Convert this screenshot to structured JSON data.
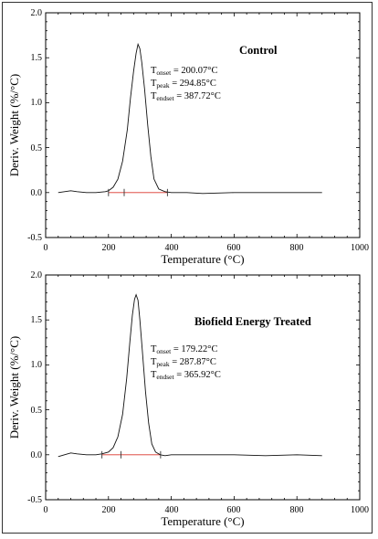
{
  "chart_data": [
    {
      "type": "line",
      "title": "Control",
      "xlabel": "Temperature (°C)",
      "ylabel": "Deriv. Weight (%/°C)",
      "xlim": [
        0,
        1000
      ],
      "ylim": [
        -0.5,
        2.0
      ],
      "xticks": [
        "0",
        "200",
        "400",
        "600",
        "800",
        "1000"
      ],
      "yticks": [
        "-0.5",
        "0.0",
        "0.5",
        "1.0",
        "1.5",
        "2.0"
      ],
      "annotations": {
        "onset_label": "T",
        "onset_sub": "onset",
        "onset_value": " = 200.07°C",
        "peak_label": "T",
        "peak_sub": "peak",
        "peak_value": " = 294.85°C",
        "endset_label": "T",
        "endset_sub": "endset",
        "endset_value": " = 387.72°C"
      },
      "series": [
        {
          "color": "#111111",
          "x": [
            40,
            60,
            80,
            100,
            130,
            160,
            190,
            200,
            215,
            230,
            245,
            260,
            270,
            280,
            288,
            294,
            300,
            306,
            315,
            325,
            335,
            345,
            360,
            380,
            400,
            450,
            500,
            600,
            700,
            800,
            880
          ],
          "y": [
            0.0,
            0.01,
            0.02,
            0.01,
            0.0,
            0.0,
            0.01,
            0.02,
            0.06,
            0.15,
            0.35,
            0.7,
            1.05,
            1.35,
            1.55,
            1.65,
            1.6,
            1.45,
            1.15,
            0.75,
            0.4,
            0.15,
            0.04,
            0.01,
            0.0,
            0.0,
            -0.01,
            0.0,
            0.0,
            0.0,
            0.0
          ]
        }
      ],
      "baseline": {
        "color": "#d9342b",
        "x": [
          200.07,
          387.72
        ],
        "y": [
          0.0,
          0.0
        ]
      },
      "markers": {
        "x": [
          200.07,
          250,
          387.72
        ]
      }
    },
    {
      "type": "line",
      "title": "Biofield Energy Treated",
      "xlabel": "Temperature (°C)",
      "ylabel": "Deriv. Weight (%/°C)",
      "xlim": [
        0,
        1000
      ],
      "ylim": [
        -0.5,
        2.0
      ],
      "xticks": [
        "0",
        "200",
        "400",
        "600",
        "800",
        "1000"
      ],
      "yticks": [
        "-0.5",
        "0.0",
        "0.5",
        "1.0",
        "1.5",
        "2.0"
      ],
      "annotations": {
        "onset_label": "T",
        "onset_sub": "onset",
        "onset_value": " = 179.22°C",
        "peak_label": "T",
        "peak_sub": "peak",
        "peak_value": " = 287.87°C",
        "endset_label": "T",
        "endset_sub": "endset",
        "endset_value": " = 365.92°C"
      },
      "series": [
        {
          "color": "#111111",
          "x": [
            40,
            60,
            80,
            100,
            130,
            160,
            179,
            200,
            215,
            230,
            245,
            258,
            268,
            276,
            283,
            288,
            294,
            300,
            308,
            318,
            328,
            338,
            350,
            365,
            380,
            400,
            500,
            600,
            700,
            800,
            880
          ],
          "y": [
            -0.02,
            0.0,
            0.02,
            0.01,
            0.0,
            0.0,
            0.01,
            0.03,
            0.08,
            0.2,
            0.45,
            0.85,
            1.25,
            1.55,
            1.73,
            1.78,
            1.72,
            1.5,
            1.15,
            0.7,
            0.35,
            0.12,
            0.03,
            0.0,
            -0.01,
            0.0,
            0.0,
            0.0,
            -0.01,
            0.0,
            -0.01
          ]
        }
      ],
      "baseline": {
        "color": "#d9342b",
        "x": [
          179.22,
          365.92
        ],
        "y": [
          0.0,
          0.0
        ]
      },
      "markers": {
        "x": [
          179.22,
          240,
          365.92
        ]
      }
    }
  ]
}
